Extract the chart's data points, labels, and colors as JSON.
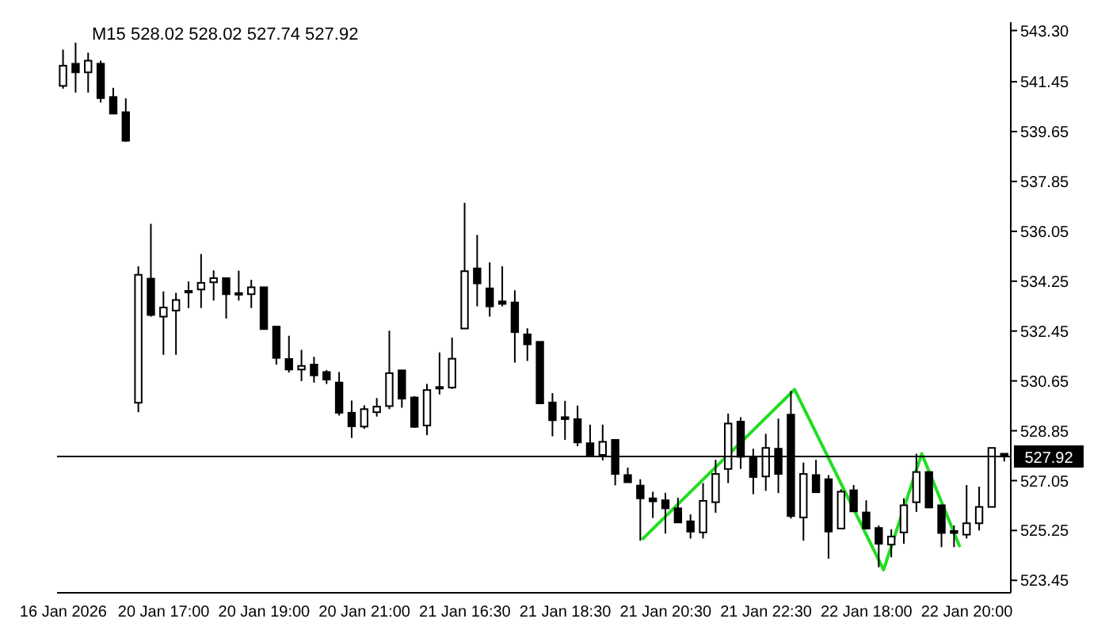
{
  "chart_data": {
    "type": "candlestick",
    "title": "M15  528.02 528.02 527.74 527.92",
    "color": "#000000",
    "categories": [
      "16 Jan 2026",
      null,
      null,
      null,
      null,
      null,
      null,
      null,
      "20 Jan 17:00",
      null,
      null,
      null,
      null,
      null,
      null,
      null,
      "20 Jan 19:00",
      null,
      null,
      null,
      null,
      null,
      null,
      null,
      "20 Jan 21:00",
      null,
      null,
      null,
      null,
      null,
      null,
      null,
      "21 Jan 16:30",
      null,
      null,
      null,
      null,
      null,
      null,
      null,
      "21 Jan 18:30",
      null,
      null,
      null,
      null,
      null,
      null,
      null,
      "21 Jan 20:30",
      null,
      null,
      null,
      null,
      null,
      null,
      null,
      "21 Jan 22:30",
      null,
      null,
      null,
      null,
      null,
      null,
      null,
      "22 Jan 18:00",
      null,
      null,
      null,
      null,
      null,
      null,
      null,
      "22 Jan 20:00",
      null,
      null,
      null
    ],
    "ohlc": [
      [
        541.3,
        542.61,
        541.2,
        542.03
      ],
      [
        542.1,
        542.86,
        541.06,
        541.79
      ],
      [
        541.79,
        542.5,
        541.06,
        542.21
      ],
      [
        542.1,
        542.21,
        540.7,
        540.86
      ],
      [
        540.9,
        541.23,
        540.3,
        540.3
      ],
      [
        540.35,
        540.85,
        539.28,
        539.32
      ],
      [
        529.86,
        534.79,
        529.52,
        534.48
      ],
      [
        534.34,
        536.32,
        532.97,
        533.03
      ],
      [
        532.97,
        533.88,
        531.59,
        533.3
      ],
      [
        533.19,
        533.83,
        531.59,
        533.57
      ],
      [
        533.9,
        534.24,
        533.28,
        533.85
      ],
      [
        533.95,
        535.23,
        533.28,
        534.19
      ],
      [
        534.21,
        534.64,
        533.55,
        534.36
      ],
      [
        534.36,
        534.36,
        532.9,
        533.78
      ],
      [
        533.82,
        534.63,
        533.55,
        533.78
      ],
      [
        533.78,
        534.3,
        533.28,
        534.03
      ],
      [
        534.03,
        534.03,
        532.52,
        532.52
      ],
      [
        532.61,
        532.61,
        531.24,
        531.48
      ],
      [
        531.44,
        532.28,
        530.95,
        531.06
      ],
      [
        531.06,
        531.77,
        530.64,
        531.19
      ],
      [
        531.24,
        531.52,
        530.59,
        530.85
      ],
      [
        530.97,
        531.04,
        530.54,
        530.7
      ],
      [
        530.59,
        530.97,
        529.4,
        529.5
      ],
      [
        529.5,
        529.94,
        528.59,
        529.01
      ],
      [
        529.0,
        529.77,
        528.92,
        529.63
      ],
      [
        529.52,
        530.03,
        529.36,
        529.72
      ],
      [
        529.74,
        532.46,
        529.63,
        530.93
      ],
      [
        531.03,
        531.03,
        529.68,
        530.01
      ],
      [
        530.05,
        530.1,
        528.96,
        528.99
      ],
      [
        529.04,
        530.54,
        528.69,
        530.32
      ],
      [
        530.43,
        531.68,
        530.16,
        530.4
      ],
      [
        530.41,
        532.21,
        530.36,
        531.45
      ],
      [
        532.54,
        537.08,
        532.54,
        534.61
      ],
      [
        534.71,
        535.92,
        533.34,
        534.17
      ],
      [
        533.99,
        534.93,
        532.97,
        533.34
      ],
      [
        533.52,
        534.79,
        533.34,
        533.43
      ],
      [
        533.48,
        533.92,
        531.31,
        532.41
      ],
      [
        532.33,
        532.55,
        531.37,
        531.97
      ],
      [
        532.06,
        532.06,
        529.84,
        529.84
      ],
      [
        529.87,
        530.21,
        528.65,
        529.23
      ],
      [
        529.34,
        529.93,
        528.52,
        529.27
      ],
      [
        529.27,
        529.76,
        528.29,
        528.43
      ],
      [
        528.4,
        529.07,
        527.98,
        527.98
      ],
      [
        527.98,
        529.07,
        527.78,
        528.45
      ],
      [
        528.52,
        528.52,
        526.88,
        527.29
      ],
      [
        527.25,
        527.52,
        526.99,
        526.99
      ],
      [
        526.87,
        527.1,
        524.88,
        526.41
      ],
      [
        526.41,
        526.65,
        525.7,
        526.3
      ],
      [
        526.34,
        526.61,
        525.14,
        526.05
      ],
      [
        526.05,
        526.43,
        525.54,
        525.54
      ],
      [
        525.58,
        525.83,
        524.96,
        525.21
      ],
      [
        525.18,
        526.96,
        524.96,
        526.32
      ],
      [
        526.27,
        527.8,
        525.89,
        527.29
      ],
      [
        527.47,
        529.47,
        526.96,
        529.11
      ],
      [
        529.18,
        529.34,
        527.47,
        527.91
      ],
      [
        527.91,
        528.2,
        526.56,
        527.18
      ],
      [
        527.2,
        528.74,
        526.68,
        528.23
      ],
      [
        528.2,
        529.29,
        526.6,
        527.29
      ],
      [
        529.43,
        530.29,
        525.68,
        525.77
      ],
      [
        525.72,
        527.7,
        524.88,
        527.29
      ],
      [
        527.25,
        527.8,
        526.63,
        526.63
      ],
      [
        527.1,
        527.25,
        524.23,
        525.21
      ],
      [
        525.32,
        526.74,
        525.29,
        526.65
      ],
      [
        526.7,
        526.89,
        525.94,
        525.94
      ],
      [
        525.9,
        526.34,
        525.29,
        525.32
      ],
      [
        525.34,
        525.43,
        523.92,
        524.77
      ],
      [
        524.74,
        525.29,
        524.28,
        525.03
      ],
      [
        525.18,
        526.41,
        524.77,
        526.16
      ],
      [
        526.27,
        528.02,
        525.92,
        527.36
      ],
      [
        527.36,
        527.36,
        526.08,
        526.08
      ],
      [
        526.16,
        526.16,
        524.65,
        525.16
      ],
      [
        525.23,
        525.43,
        524.65,
        525.16
      ],
      [
        525.1,
        526.89,
        524.96,
        525.51
      ],
      [
        525.51,
        526.83,
        525.25,
        526.1
      ],
      [
        526.1,
        528.23,
        526.1,
        528.23
      ],
      [
        528.02,
        528.02,
        527.74,
        527.92
      ]
    ],
    "series": [
      {
        "type": "line",
        "color": "#22dd22",
        "values": [
          null,
          null,
          null,
          null,
          null,
          null,
          null,
          null,
          null,
          null,
          null,
          null,
          null,
          null,
          null,
          null,
          null,
          null,
          null,
          null,
          null,
          null,
          null,
          null,
          null,
          null,
          null,
          null,
          null,
          null,
          null,
          null,
          null,
          null,
          null,
          null,
          null,
          null,
          null,
          null,
          null,
          null,
          null,
          null,
          null,
          null,
          524.92,
          null,
          null,
          null,
          null,
          null,
          null,
          null,
          null,
          null,
          null,
          null,
          530.34,
          null,
          null,
          null,
          null,
          null,
          null,
          523.83,
          null,
          null,
          528.02,
          null,
          null,
          524.65,
          null,
          null,
          null,
          null
        ]
      }
    ],
    "ylim": [
      523.0,
      543.6
    ],
    "yticks": [
      {
        "value": 543.3,
        "label": "543.30"
      },
      541.45,
      539.65,
      537.85,
      536.05,
      534.25,
      532.45,
      530.65,
      528.85,
      527.05,
      525.25,
      523.45
    ],
    "ref_lines": [
      {
        "axis": "y",
        "value": 527.92,
        "label": "527.92",
        "color": "#000000"
      }
    ]
  }
}
